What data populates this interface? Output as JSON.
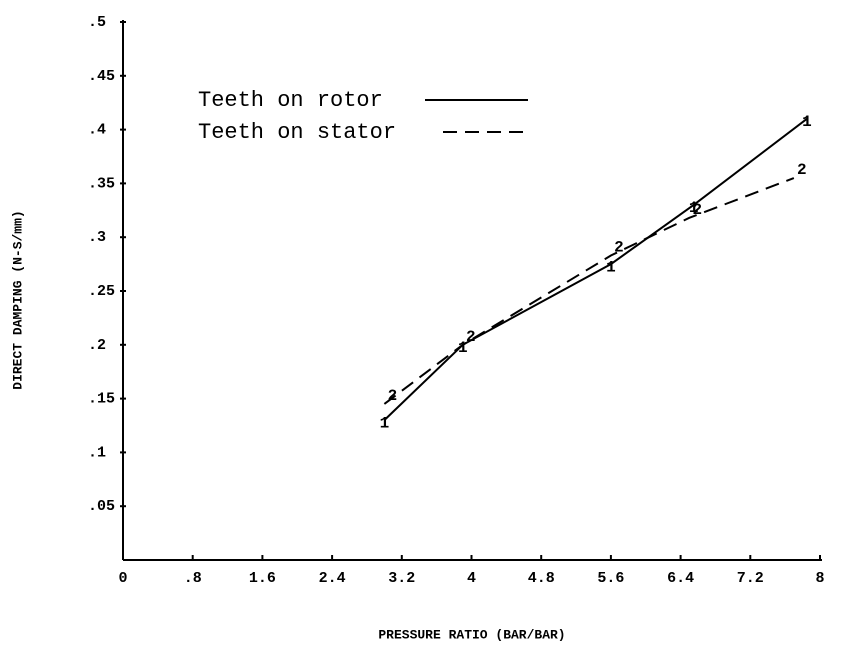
{
  "chart_data": {
    "type": "line",
    "xlabel": "PRESSURE RATIO (BAR/BAR)",
    "ylabel": "DIRECT DAMPING (N-S/mm)",
    "xlim": [
      0,
      8
    ],
    "xticks": [
      0,
      {
        "value": 0.8,
        "label": ".8"
      },
      1.6,
      2.4,
      3.2,
      4,
      4.8,
      5.6,
      6.4,
      7.2,
      8
    ],
    "ylim": [
      0,
      0.5
    ],
    "yticks": [
      {
        "value": 0.05,
        "label": ".05"
      },
      {
        "value": 0.1,
        "label": ".1"
      },
      {
        "value": 0.15,
        "label": ".15"
      },
      {
        "value": 0.2,
        "label": ".2"
      },
      {
        "value": 0.25,
        "label": ".25"
      },
      {
        "value": 0.3,
        "label": ".3"
      },
      {
        "value": 0.35,
        "label": ".35"
      },
      {
        "value": 0.4,
        "label": ".4"
      },
      {
        "value": 0.45,
        "label": ".45"
      },
      {
        "value": 0.5,
        "label": ".5"
      }
    ],
    "legend": "upper left",
    "series": [
      {
        "name": "Teeth on rotor",
        "color": "#000000",
        "dash": "solid",
        "marker": "1",
        "x": [
          3.0,
          3.9,
          5.6,
          6.55,
          7.85
        ],
        "values": [
          0.13,
          0.2,
          0.275,
          0.33,
          0.41
        ]
      },
      {
        "name": "Teeth on stator",
        "color": "#000000",
        "dash": "dashed",
        "marker": "2",
        "x": [
          3.0,
          3.9,
          5.6,
          6.5,
          7.7
        ],
        "values": [
          0.145,
          0.2,
          0.283,
          0.318,
          0.355
        ]
      }
    ]
  }
}
